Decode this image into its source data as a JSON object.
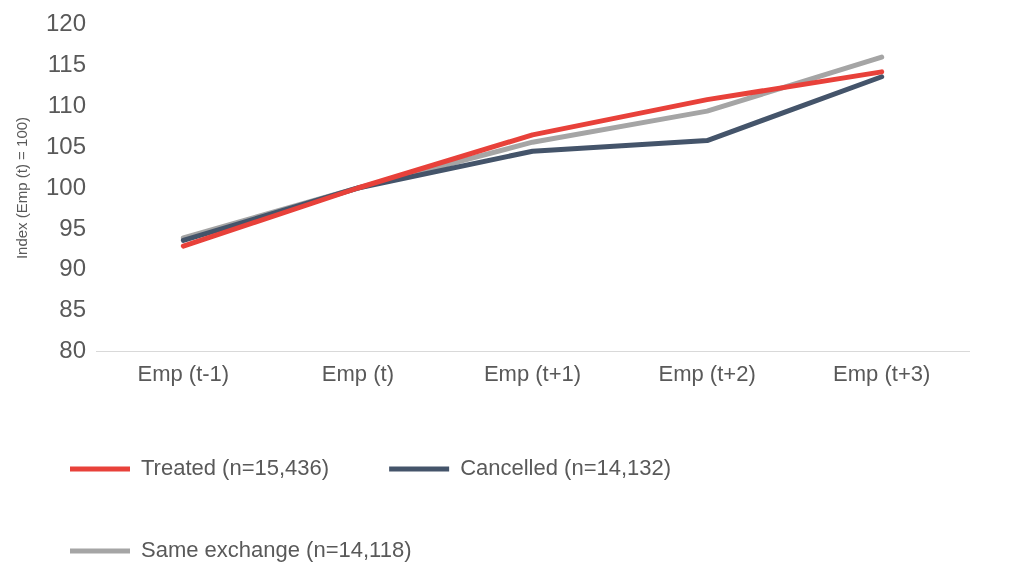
{
  "chart_data": {
    "type": "line",
    "ylabel": "Index (Emp (t) = 100)",
    "categories": [
      "Emp (t-1)",
      "Emp (t)",
      "Emp (t+1)",
      "Emp (t+2)",
      "Emp (t+3)"
    ],
    "series": [
      {
        "name": "Treated (n=15,436)",
        "color": "#e8413a",
        "values": [
          92.9,
          100,
          106.5,
          110.8,
          114.2
        ]
      },
      {
        "name": "Cancelled (n=14,132)",
        "color": "#44546a",
        "values": [
          93.6,
          100,
          104.5,
          105.8,
          113.6
        ]
      },
      {
        "name": "Same exchange (n=14,118)",
        "color": "#a5a5a5",
        "values": [
          93.9,
          100,
          105.6,
          109.4,
          116
        ]
      }
    ],
    "ylim": [
      80,
      120
    ],
    "yticks": [
      80,
      85,
      90,
      95,
      100,
      105,
      110,
      115,
      120
    ],
    "grid": false,
    "legend": "bottom",
    "marker": "none",
    "line_style": "solid"
  }
}
